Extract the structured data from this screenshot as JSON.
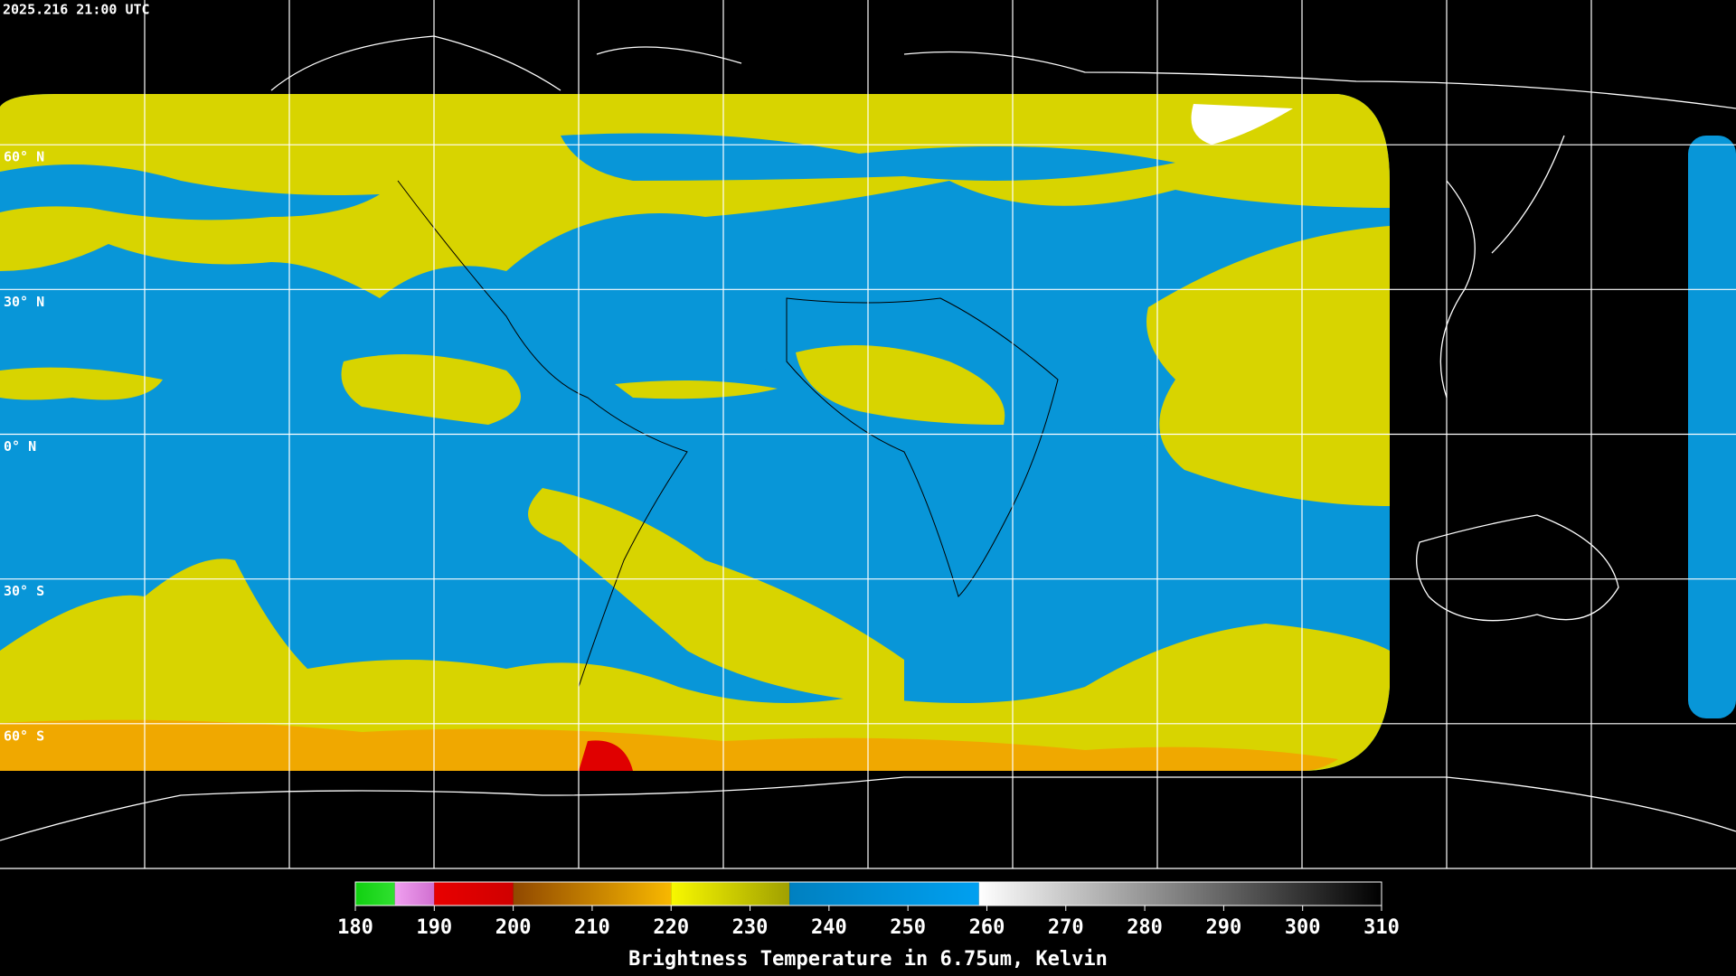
{
  "header": {
    "timestamp": "2025.216 21:00 UTC"
  },
  "map": {
    "lat_range": [
      -90,
      90
    ],
    "lat_ticks": [
      {
        "value": 60,
        "label": "60° N"
      },
      {
        "value": 30,
        "label": "30° N"
      },
      {
        "value": 0,
        "label": "0° N"
      },
      {
        "value": -30,
        "label": "30° S"
      },
      {
        "value": -60,
        "label": "60° S"
      }
    ]
  },
  "colorbar": {
    "title": "Brightness Temperature in 6.75um, Kelvin",
    "range": [
      180,
      310
    ],
    "ticks": [
      180,
      190,
      200,
      210,
      220,
      230,
      240,
      250,
      260,
      270,
      280,
      290,
      300,
      310
    ],
    "segments": [
      {
        "from": 180,
        "to": 185,
        "colors": [
          "#10d010",
          "#30e030"
        ]
      },
      {
        "from": 185,
        "to": 190,
        "colors": [
          "#f0a0f0",
          "#d070d0"
        ]
      },
      {
        "from": 190,
        "to": 200,
        "colors": [
          "#e80000",
          "#d00000"
        ]
      },
      {
        "from": 200,
        "to": 220,
        "colors": [
          "#904800",
          "#f8b800"
        ]
      },
      {
        "from": 220,
        "to": 235,
        "colors": [
          "#f8f800",
          "#a0a000"
        ]
      },
      {
        "from": 235,
        "to": 259,
        "colors": [
          "#0080c0",
          "#00a0f0"
        ]
      },
      {
        "from": 259,
        "to": 310,
        "colors": [
          "#ffffff",
          "#000000"
        ]
      }
    ]
  }
}
